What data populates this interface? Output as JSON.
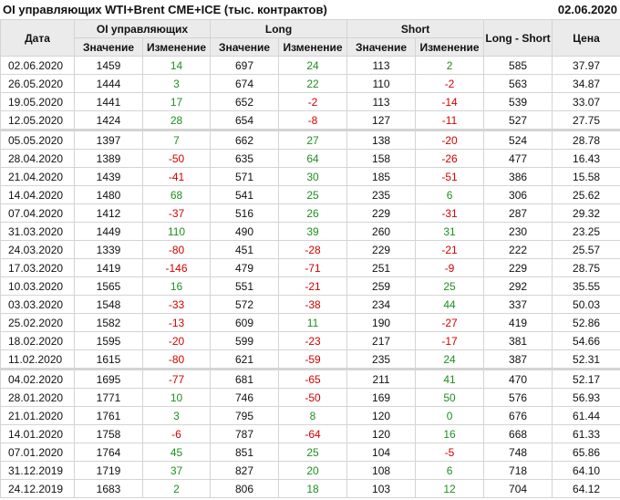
{
  "title": "OI управляющих WTI+Brent CME+ICE (тыс. контрактов)",
  "date": "02.06.2020",
  "colors": {
    "positive": "#1f8f1f",
    "negative": "#d40000",
    "header_bg": "#ebebeb"
  },
  "headers": {
    "date": "Дата",
    "oi": "OI управляющих",
    "long": "Long",
    "short": "Short",
    "long_short": "Long - Short",
    "price": "Цена",
    "value": "Значение",
    "change": "Изменение"
  },
  "rows": [
    [
      "02.06.2020",
      "1459",
      "14",
      "697",
      "24",
      "113",
      "2",
      "585",
      "37.97"
    ],
    [
      "26.05.2020",
      "1444",
      "3",
      "674",
      "22",
      "110",
      "-2",
      "563",
      "34.87"
    ],
    [
      "19.05.2020",
      "1441",
      "17",
      "652",
      "-2",
      "113",
      "-14",
      "539",
      "33.07"
    ],
    [
      "12.05.2020",
      "1424",
      "28",
      "654",
      "-8",
      "127",
      "-11",
      "527",
      "27.75"
    ],
    [
      "05.05.2020",
      "1397",
      "7",
      "662",
      "27",
      "138",
      "-20",
      "524",
      "28.78"
    ],
    [
      "28.04.2020",
      "1389",
      "-50",
      "635",
      "64",
      "158",
      "-26",
      "477",
      "16.43"
    ],
    [
      "21.04.2020",
      "1439",
      "-41",
      "571",
      "30",
      "185",
      "-51",
      "386",
      "15.58"
    ],
    [
      "14.04.2020",
      "1480",
      "68",
      "541",
      "25",
      "235",
      "6",
      "306",
      "25.62"
    ],
    [
      "07.04.2020",
      "1412",
      "-37",
      "516",
      "26",
      "229",
      "-31",
      "287",
      "29.32"
    ],
    [
      "31.03.2020",
      "1449",
      "110",
      "490",
      "39",
      "260",
      "31",
      "230",
      "23.25"
    ],
    [
      "24.03.2020",
      "1339",
      "-80",
      "451",
      "-28",
      "229",
      "-21",
      "222",
      "25.57"
    ],
    [
      "17.03.2020",
      "1419",
      "-146",
      "479",
      "-71",
      "251",
      "-9",
      "229",
      "28.75"
    ],
    [
      "10.03.2020",
      "1565",
      "16",
      "551",
      "-21",
      "259",
      "25",
      "292",
      "35.55"
    ],
    [
      "03.03.2020",
      "1548",
      "-33",
      "572",
      "-38",
      "234",
      "44",
      "337",
      "50.03"
    ],
    [
      "25.02.2020",
      "1582",
      "-13",
      "609",
      "11",
      "190",
      "-27",
      "419",
      "52.86"
    ],
    [
      "18.02.2020",
      "1595",
      "-20",
      "599",
      "-23",
      "217",
      "-17",
      "381",
      "54.66"
    ],
    [
      "11.02.2020",
      "1615",
      "-80",
      "621",
      "-59",
      "235",
      "24",
      "387",
      "52.31"
    ],
    [
      "04.02.2020",
      "1695",
      "-77",
      "681",
      "-65",
      "211",
      "41",
      "470",
      "52.17"
    ],
    [
      "28.01.2020",
      "1771",
      "10",
      "746",
      "-50",
      "169",
      "50",
      "576",
      "56.93"
    ],
    [
      "21.01.2020",
      "1761",
      "3",
      "795",
      "8",
      "120",
      "0",
      "676",
      "61.44"
    ],
    [
      "14.01.2020",
      "1758",
      "-6",
      "787",
      "-64",
      "120",
      "16",
      "668",
      "61.33"
    ],
    [
      "07.01.2020",
      "1764",
      "45",
      "851",
      "25",
      "104",
      "-5",
      "748",
      "65.86"
    ],
    [
      "31.12.2019",
      "1719",
      "37",
      "827",
      "20",
      "108",
      "6",
      "718",
      "64.10"
    ],
    [
      "24.12.2019",
      "1683",
      "2",
      "806",
      "18",
      "103",
      "12",
      "704",
      "64.12"
    ]
  ]
}
